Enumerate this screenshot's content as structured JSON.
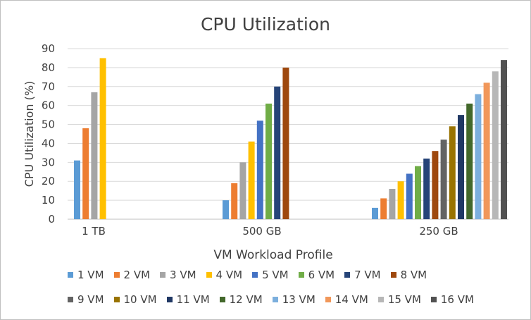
{
  "chart_data": {
    "type": "bar",
    "title": "CPU Utilization",
    "xlabel": "VM Workload Profile",
    "ylabel": "CPU Utilization (%)",
    "ylim": [
      0,
      90
    ],
    "yticks": [
      0,
      10,
      20,
      30,
      40,
      50,
      60,
      70,
      80,
      90
    ],
    "grid": true,
    "legend_position": "bottom",
    "categories": [
      "1 TB",
      "500 GB",
      "250 GB"
    ],
    "series": [
      {
        "name": "1 VM",
        "color": "#5b9bd5",
        "values": [
          31,
          10,
          6
        ]
      },
      {
        "name": "2 VM",
        "color": "#ed7d31",
        "values": [
          48,
          19,
          11
        ]
      },
      {
        "name": "3 VM",
        "color": "#a5a5a5",
        "values": [
          67,
          30,
          16
        ]
      },
      {
        "name": "4 VM",
        "color": "#ffc000",
        "values": [
          85,
          41,
          20
        ]
      },
      {
        "name": "5 VM",
        "color": "#4472c4",
        "values": [
          null,
          52,
          24
        ]
      },
      {
        "name": "6 VM",
        "color": "#70ad47",
        "values": [
          null,
          61,
          28
        ]
      },
      {
        "name": "7 VM",
        "color": "#264478",
        "values": [
          null,
          70,
          32
        ]
      },
      {
        "name": "8 VM",
        "color": "#9e480e",
        "values": [
          null,
          80,
          36
        ]
      },
      {
        "name": "9 VM",
        "color": "#636363",
        "values": [
          null,
          null,
          42
        ]
      },
      {
        "name": "10 VM",
        "color": "#997300",
        "values": [
          null,
          null,
          49
        ]
      },
      {
        "name": "11 VM",
        "color": "#203864",
        "values": [
          null,
          null,
          55
        ]
      },
      {
        "name": "12 VM",
        "color": "#43682b",
        "values": [
          null,
          null,
          61
        ]
      },
      {
        "name": "13 VM",
        "color": "#7cafdd",
        "values": [
          null,
          null,
          66
        ]
      },
      {
        "name": "14 VM",
        "color": "#f1975a",
        "values": [
          null,
          null,
          72
        ]
      },
      {
        "name": "15 VM",
        "color": "#b7b7b7",
        "values": [
          null,
          null,
          78
        ]
      },
      {
        "name": "16 VM",
        "color": "#525252",
        "values": [
          null,
          null,
          84
        ]
      }
    ]
  }
}
